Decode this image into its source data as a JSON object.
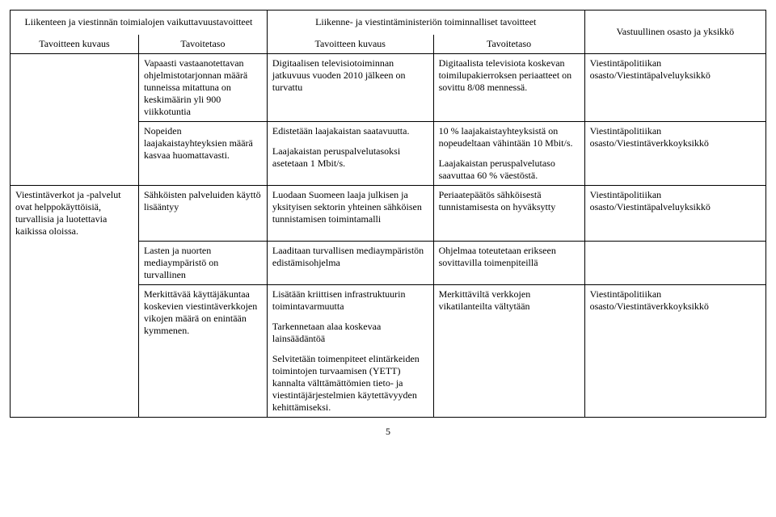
{
  "header": {
    "group1": "Liikenteen ja viestinnän toimialojen vaikuttavuustavoitteet",
    "group2": "Liikenne- ja viestintäministeriön toiminnalliset tavoitteet",
    "col5": "Vastuullinen osasto ja yksikkö",
    "sub1": "Tavoitteen kuvaus",
    "sub2": "Tavoitetaso",
    "sub3": "Tavoitteen kuvaus",
    "sub4": "Tavoitetaso"
  },
  "r1": {
    "c2": "Vapaasti vastaanotettavan ohjelmistotarjonnan määrä tunneissa mitattuna on keskimäärin yli 900 viikkotuntia",
    "c3": "Digitaalisen televisiotoiminnan jatkuvuus vuoden 2010 jälkeen on turvattu",
    "c4": "Digitaalista televisiota koskevan toimilupakierroksen periaatteet on sovittu 8/08 mennessä.",
    "c5": "Viestintäpolitiikan osasto/Viestintäpalveluyksikkö"
  },
  "r2": {
    "c2": "Nopeiden laajakaistayhteyksien määrä kasvaa huomattavasti.",
    "c3a": "Edistetään laajakaistan saatavuutta.",
    "c3b": "Laajakaistan peruspalvelutasoksi asetetaan 1 Mbit/s.",
    "c4a": "10 % laajakaistayhteyksistä on nopeudeltaan vähintään 10 Mbit/s.",
    "c4b": "Laajakaistan peruspalvelutaso saavuttaa 60 % väestöstä.",
    "c5": "Viestintäpolitiikan osasto/Viestintäverkkoyksikkö"
  },
  "r3": {
    "c1": "Viestintäverkot ja -palvelut ovat helppokäyttöisiä, turvallisia ja luotettavia kaikissa oloissa.",
    "c2": "Sähköisten palveluiden käyttö lisääntyy",
    "c3": "Luodaan Suomeen laaja julkisen ja yksityisen sektorin yhteinen sähköisen tunnistamisen toimintamalli",
    "c4": "Periaatepäätös sähköisestä tunnistamisesta on hyväksytty",
    "c5": "Viestintäpolitiikan osasto/Viestintäpalveluyksikkö"
  },
  "r4": {
    "c2": "Lasten ja nuorten mediaympäristö on turvallinen",
    "c3": "Laaditaan turvallisen mediaympäristön edistämisohjelma",
    "c4": "Ohjelmaa toteutetaan erikseen sovittavilla toimenpiteillä"
  },
  "r5": {
    "c2": "Merkittävää käyttäjäkuntaa koskevien viestintäverkkojen vikojen määrä on enintään kymmenen.",
    "c3a": "Lisätään kriittisen infrastruktuurin toimintavarmuutta",
    "c3b": "Tarkennetaan alaa koskevaa lainsäädäntöä",
    "c3c": "Selvitetään toimenpiteet elintärkeiden toimintojen turvaamisen (YETT) kannalta välttämättömien tieto- ja viestintäjärjestelmien käytettävyyden kehittämiseksi.",
    "c4": "Merkittäviltä verkkojen vikatilanteilta vältytään",
    "c5": "Viestintäpolitiikan osasto/Viestintäverkkoyksikkö"
  },
  "pageNumber": "5"
}
